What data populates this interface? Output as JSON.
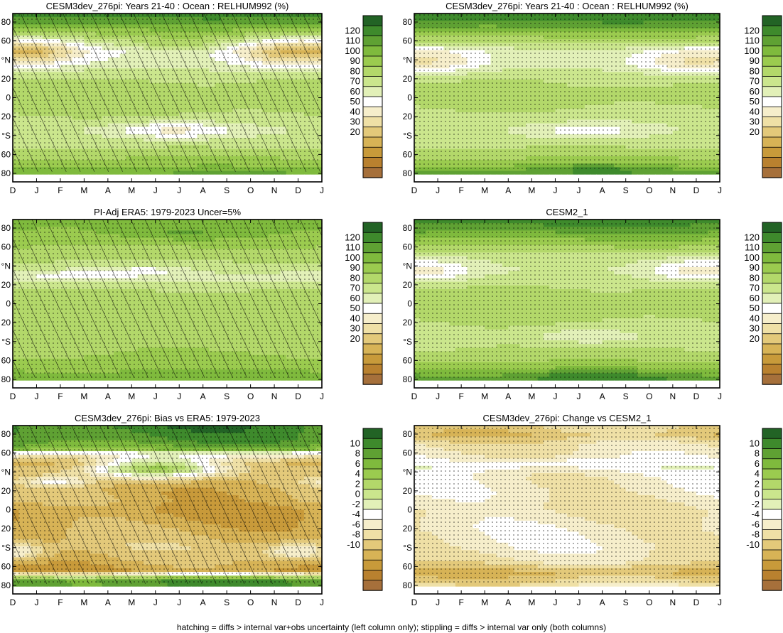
{
  "figure": {
    "caption": "hatching = diffs > internal var+obs uncertainty (left column only); stippling = diffs > internal var only (both columns)"
  },
  "palettes": {
    "abs": [
      "#a6703b",
      "#b9812f",
      "#c89a3a",
      "#d7b356",
      "#e3c97a",
      "#efe0a6",
      "#f6eecb",
      "#ffffff",
      "#e2f0b8",
      "#cbe68d",
      "#b3d86a",
      "#9bcb4f",
      "#7fba3d",
      "#5fa133",
      "#3e8a2c",
      "#226325"
    ],
    "diff": [
      "#a6703b",
      "#b9812f",
      "#c89a3a",
      "#d7b356",
      "#e3c97a",
      "#efe0a6",
      "#f6eecb",
      "#ffffff",
      "#e2f0b8",
      "#cbe68d",
      "#b3d86a",
      "#9bcb4f",
      "#7fba3d",
      "#5fa133",
      "#3e8a2c",
      "#226325"
    ]
  },
  "chart_data": [
    {
      "type": "heatmap",
      "title": "CESM3dev_276pi: Years 21-40 : Ocean : RELHUM992 (%)",
      "x_tick_labels": [
        "D",
        "J",
        "F",
        "M",
        "A",
        "M",
        "J",
        "J",
        "A",
        "S",
        "O",
        "N",
        "D",
        "J"
      ],
      "y_tick_labels": [
        "80",
        "60",
        "°N",
        "20",
        "0",
        "20",
        "°S",
        "60",
        "80"
      ],
      "colorbar_labels": [
        "120",
        "110",
        "100",
        "90",
        "80",
        "70",
        "60",
        "50",
        "40",
        "30",
        "20"
      ],
      "colorbar_range": [
        15,
        125
      ],
      "hatching": true,
      "lat_profile": [
        {
          "lat": 90,
          "v": 116
        },
        {
          "lat": 80,
          "v": 106
        },
        {
          "lat": 65,
          "v": 90
        },
        {
          "lat": 50,
          "v": 72
        },
        {
          "lat": 35,
          "v": 75
        },
        {
          "lat": 20,
          "v": 84
        },
        {
          "lat": 0,
          "v": 87
        },
        {
          "lat": -20,
          "v": 84
        },
        {
          "lat": -35,
          "v": 78
        },
        {
          "lat": -55,
          "v": 84
        },
        {
          "lat": -72,
          "v": 96
        },
        {
          "lat": -80,
          "v": 104
        },
        {
          "lat": -84,
          "v": 105
        }
      ],
      "features": [
        {
          "lat": 50,
          "month": 1.0,
          "dlat": 16,
          "dmon": 2.3,
          "amp": -20,
          "weight": 1
        },
        {
          "lat": 50,
          "month": 11.3,
          "dlat": 16,
          "dmon": 2.3,
          "amp": -20,
          "weight": 1
        },
        {
          "lat": -35,
          "month": 6.8,
          "dlat": 10,
          "dmon": 2.6,
          "amp": -18,
          "weight": 1
        },
        {
          "lat": 55,
          "month": 7.0,
          "dlat": 8,
          "dmon": 1.5,
          "amp": 10,
          "weight": 1
        }
      ],
      "white_below_lat": -84
    },
    {
      "type": "heatmap",
      "title": "CESM3dev_276pi: Years 21-40 : Ocean : RELHUM992 (%)",
      "x_tick_labels": [
        "D",
        "J",
        "F",
        "M",
        "A",
        "M",
        "J",
        "J",
        "A",
        "S",
        "O",
        "N",
        "D",
        "J"
      ],
      "y_tick_labels": [
        "80",
        "60",
        "°N",
        "20",
        "0",
        "20",
        "°S",
        "60",
        "80"
      ],
      "colorbar_labels": [
        "120",
        "110",
        "100",
        "90",
        "80",
        "70",
        "60",
        "50",
        "40",
        "30",
        "20"
      ],
      "colorbar_range": [
        15,
        125
      ],
      "hatching": false,
      "lat_profile": [
        {
          "lat": 90,
          "v": 118
        },
        {
          "lat": 80,
          "v": 110
        },
        {
          "lat": 65,
          "v": 92
        },
        {
          "lat": 50,
          "v": 76
        },
        {
          "lat": 35,
          "v": 76
        },
        {
          "lat": 20,
          "v": 84
        },
        {
          "lat": 0,
          "v": 86
        },
        {
          "lat": -20,
          "v": 82
        },
        {
          "lat": -35,
          "v": 80
        },
        {
          "lat": -55,
          "v": 84
        },
        {
          "lat": -72,
          "v": 96
        },
        {
          "lat": -80,
          "v": 108
        },
        {
          "lat": -84,
          "v": 106
        }
      ],
      "features": [
        {
          "lat": 40,
          "month": 1.2,
          "dlat": 15,
          "dmon": 2.2,
          "amp": -14,
          "weight": 1
        },
        {
          "lat": 40,
          "month": 11.2,
          "dlat": 15,
          "dmon": 2.2,
          "amp": -14,
          "weight": 1
        },
        {
          "lat": -35,
          "month": 7.2,
          "dlat": 10,
          "dmon": 3.0,
          "amp": -14,
          "weight": 1
        },
        {
          "lat": -75,
          "month": 7.5,
          "dlat": 5,
          "dmon": 2.5,
          "amp": 10,
          "weight": 1
        }
      ],
      "white_below_lat": -84
    },
    {
      "type": "heatmap",
      "title": "PI-Adj ERA5: 1979-2023 Uncer=5%",
      "x_tick_labels": [
        "D",
        "J",
        "F",
        "M",
        "A",
        "M",
        "J",
        "J",
        "A",
        "S",
        "O",
        "N",
        "D",
        "J"
      ],
      "y_tick_labels": [
        "80",
        "60",
        "°N",
        "20",
        "0",
        "20",
        "°S",
        "60",
        "80"
      ],
      "colorbar_labels": [
        "120",
        "110",
        "100",
        "90",
        "80",
        "70",
        "60",
        "50",
        "40",
        "30",
        "20"
      ],
      "colorbar_range": [
        15,
        125
      ],
      "hatching": true,
      "lat_profile": [
        {
          "lat": 90,
          "v": 100
        },
        {
          "lat": 80,
          "v": 98
        },
        {
          "lat": 65,
          "v": 92
        },
        {
          "lat": 50,
          "v": 86
        },
        {
          "lat": 35,
          "v": 78
        },
        {
          "lat": 25,
          "v": 76
        },
        {
          "lat": 15,
          "v": 84
        },
        {
          "lat": 0,
          "v": 88
        },
        {
          "lat": -20,
          "v": 88
        },
        {
          "lat": -40,
          "v": 88
        },
        {
          "lat": -60,
          "v": 92
        },
        {
          "lat": -72,
          "v": 98
        },
        {
          "lat": -80,
          "v": 100
        },
        {
          "lat": -84,
          "v": 100
        }
      ],
      "features": [
        {
          "lat": 30,
          "month": 2.5,
          "dlat": 6,
          "dmon": 2.5,
          "amp": -12,
          "weight": 1
        },
        {
          "lat": 35,
          "month": 5.5,
          "dlat": 5,
          "dmon": 1.5,
          "amp": -10,
          "weight": 1
        },
        {
          "lat": 75,
          "month": 7.0,
          "dlat": 8,
          "dmon": 3.0,
          "amp": 8,
          "weight": 1
        }
      ],
      "white_below_lat": -84
    },
    {
      "type": "heatmap",
      "title": "CESM2_1",
      "x_tick_labels": [
        "D",
        "J",
        "F",
        "M",
        "A",
        "M",
        "J",
        "J",
        "A",
        "S",
        "O",
        "N",
        "D",
        "J"
      ],
      "y_tick_labels": [
        "80",
        "60",
        "°N",
        "20",
        "0",
        "20",
        "°S",
        "60",
        "80"
      ],
      "colorbar_labels": [
        "120",
        "110",
        "100",
        "90",
        "80",
        "70",
        "60",
        "50",
        "40",
        "30",
        "20"
      ],
      "colorbar_range": [
        15,
        125
      ],
      "hatching": false,
      "lat_profile": [
        {
          "lat": 90,
          "v": 116
        },
        {
          "lat": 80,
          "v": 108
        },
        {
          "lat": 65,
          "v": 94
        },
        {
          "lat": 50,
          "v": 80
        },
        {
          "lat": 35,
          "v": 78
        },
        {
          "lat": 20,
          "v": 84
        },
        {
          "lat": 0,
          "v": 87
        },
        {
          "lat": -20,
          "v": 84
        },
        {
          "lat": -35,
          "v": 82
        },
        {
          "lat": -55,
          "v": 86
        },
        {
          "lat": -72,
          "v": 98
        },
        {
          "lat": -80,
          "v": 110
        },
        {
          "lat": -84,
          "v": 106
        }
      ],
      "features": [
        {
          "lat": 35,
          "month": 1.0,
          "dlat": 13,
          "dmon": 2.0,
          "amp": -12,
          "weight": 1
        },
        {
          "lat": 35,
          "month": 11.5,
          "dlat": 13,
          "dmon": 2.0,
          "amp": -12,
          "weight": 1
        },
        {
          "lat": -35,
          "month": 7.3,
          "dlat": 9,
          "dmon": 2.4,
          "amp": -12,
          "weight": 1
        },
        {
          "lat": -75,
          "month": 7.5,
          "dlat": 5,
          "dmon": 2.5,
          "amp": 12,
          "weight": 1
        }
      ],
      "white_below_lat": -84
    },
    {
      "type": "heatmap",
      "title": "CESM3dev_276pi: Bias vs ERA5: 1979-2023",
      "x_tick_labels": [
        "D",
        "J",
        "F",
        "M",
        "A",
        "M",
        "J",
        "J",
        "A",
        "S",
        "O",
        "N",
        "D",
        "J"
      ],
      "y_tick_labels": [
        "80",
        "60",
        "°N",
        "20",
        "0",
        "20",
        "°S",
        "60",
        "80"
      ],
      "colorbar_labels": [
        "10",
        "8",
        "6",
        "4",
        "2",
        "0",
        "-2",
        "-4",
        "-6",
        "-8",
        "-10"
      ],
      "colorbar_range": [
        -11,
        11
      ],
      "hatching": true,
      "lat_profile": [
        {
          "lat": 90,
          "v": 9
        },
        {
          "lat": 75,
          "v": 8
        },
        {
          "lat": 65,
          "v": 6
        },
        {
          "lat": 60,
          "v": -2
        },
        {
          "lat": 50,
          "v": -7
        },
        {
          "lat": 40,
          "v": -6
        },
        {
          "lat": 25,
          "v": -6
        },
        {
          "lat": 10,
          "v": -6
        },
        {
          "lat": 0,
          "v": -7
        },
        {
          "lat": -20,
          "v": -6
        },
        {
          "lat": -40,
          "v": -5
        },
        {
          "lat": -55,
          "v": -6
        },
        {
          "lat": -65,
          "v": -7
        },
        {
          "lat": -70,
          "v": 0
        },
        {
          "lat": -75,
          "v": 8
        },
        {
          "lat": -84,
          "v": 8
        }
      ],
      "features": [
        {
          "lat": 45,
          "month": 6.0,
          "dlat": 12,
          "dmon": 2.8,
          "amp": 12,
          "weight": 1
        },
        {
          "lat": 30,
          "month": 1.8,
          "dlat": 5,
          "dmon": 1.4,
          "amp": 4,
          "weight": 1
        },
        {
          "lat": -45,
          "month": 0.5,
          "dlat": 10,
          "dmon": 1.2,
          "amp": 3,
          "weight": 1
        },
        {
          "lat": -45,
          "month": 11.5,
          "dlat": 10,
          "dmon": 1.2,
          "amp": 3,
          "weight": 1
        }
      ],
      "white_below_lat": -84
    },
    {
      "type": "heatmap",
      "title": "CESM3dev_276pi: Change vs CESM2_1",
      "x_tick_labels": [
        "D",
        "J",
        "F",
        "M",
        "A",
        "M",
        "J",
        "J",
        "A",
        "S",
        "O",
        "N",
        "D",
        "J"
      ],
      "y_tick_labels": [
        "80",
        "60",
        "°N",
        "20",
        "0",
        "20",
        "°S",
        "60",
        "80"
      ],
      "colorbar_labels": [
        "10",
        "8",
        "6",
        "4",
        "2",
        "0",
        "-2",
        "-4",
        "-6",
        "-8",
        "-10"
      ],
      "colorbar_range": [
        -11,
        11
      ],
      "hatching": false,
      "lat_profile": [
        {
          "lat": 90,
          "v": -4
        },
        {
          "lat": 80,
          "v": -5
        },
        {
          "lat": 70,
          "v": -3
        },
        {
          "lat": 55,
          "v": -2
        },
        {
          "lat": 45,
          "v": -1
        },
        {
          "lat": 35,
          "v": -2
        },
        {
          "lat": 20,
          "v": -2
        },
        {
          "lat": 0,
          "v": -3
        },
        {
          "lat": -20,
          "v": -2
        },
        {
          "lat": -40,
          "v": -2
        },
        {
          "lat": -55,
          "v": -3
        },
        {
          "lat": -68,
          "v": -5
        },
        {
          "lat": -78,
          "v": -4
        },
        {
          "lat": -84,
          "v": -2
        }
      ],
      "features": [
        {
          "lat": 50,
          "month": 5.5,
          "dlat": 5,
          "dmon": 2.5,
          "amp": 2,
          "weight": 1
        },
        {
          "lat": -65,
          "month": 8.0,
          "dlat": 6,
          "dmon": 3.5,
          "amp": -2,
          "weight": 1
        }
      ],
      "white_below_lat": -84
    }
  ]
}
